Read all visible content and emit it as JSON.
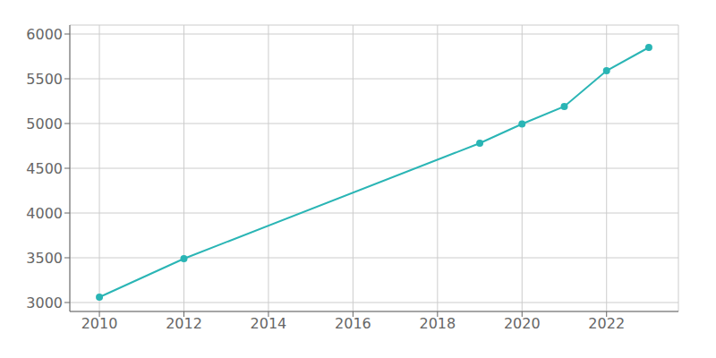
{
  "chart_data": {
    "type": "line",
    "x": [
      2010,
      2012,
      2019,
      2020,
      2021,
      2022,
      2023
    ],
    "values": [
      3060,
      3490,
      4780,
      4995,
      5190,
      5590,
      5850
    ],
    "color": "#2ab5b5",
    "marker": "circle",
    "xlim": [
      2009.3,
      2023.7
    ],
    "xticks": [
      2010,
      2012,
      2014,
      2016,
      2018,
      2020,
      2022
    ],
    "ylim": [
      2900,
      6100
    ],
    "yticks": [
      3000,
      3500,
      4000,
      4500,
      5000,
      5500,
      6000
    ],
    "grid": true
  }
}
